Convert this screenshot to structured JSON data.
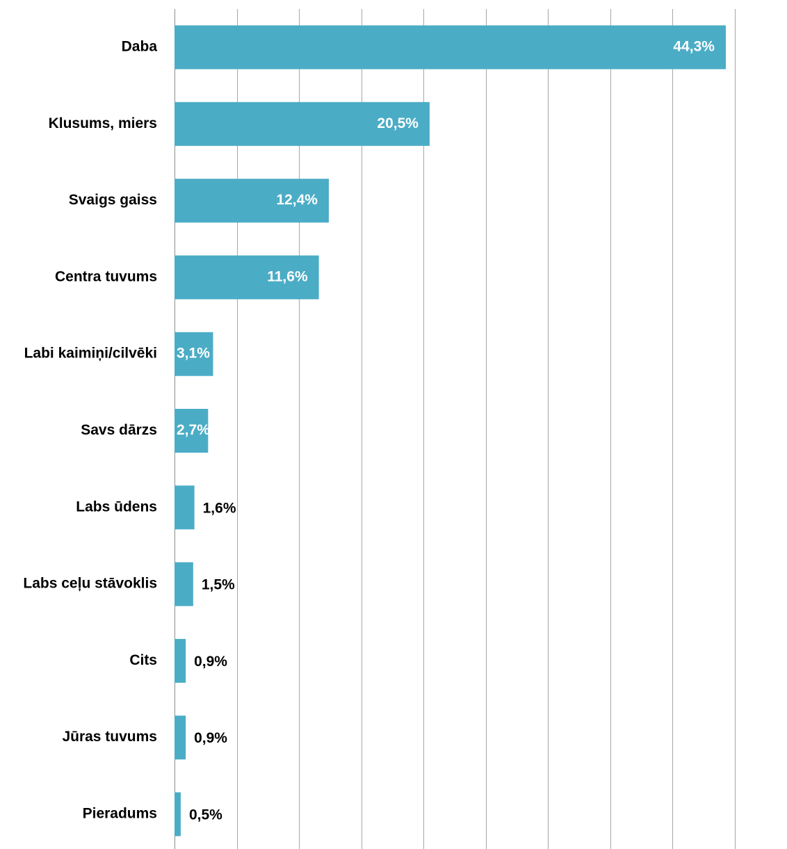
{
  "chart_data": {
    "type": "bar",
    "orientation": "horizontal",
    "categories": [
      "Daba",
      "Klusums, miers",
      "Svaigs gaiss",
      "Centra tuvums",
      "Labi kaimiņi/cilvēki",
      "Savs dārzs",
      "Labs ūdens",
      "Labs ceļu stāvoklis",
      "Cits",
      "Jūras tuvums",
      "Pieradums"
    ],
    "values": [
      44.3,
      20.5,
      12.4,
      11.6,
      3.1,
      2.7,
      1.6,
      1.5,
      0.9,
      0.9,
      0.5
    ],
    "value_labels": [
      "44,3%",
      "20,5%",
      "12,4%",
      "11,6%",
      "3,1%",
      "2,7%",
      "1,6%",
      "1,5%",
      "0,9%",
      "0,9%",
      "0,5%"
    ],
    "xlim": [
      0,
      45
    ],
    "grid": true,
    "gridline_step": 5,
    "bar_color": "#4BACC6",
    "label_inside_color": "#ffffff",
    "label_outside_color": "#000000"
  }
}
